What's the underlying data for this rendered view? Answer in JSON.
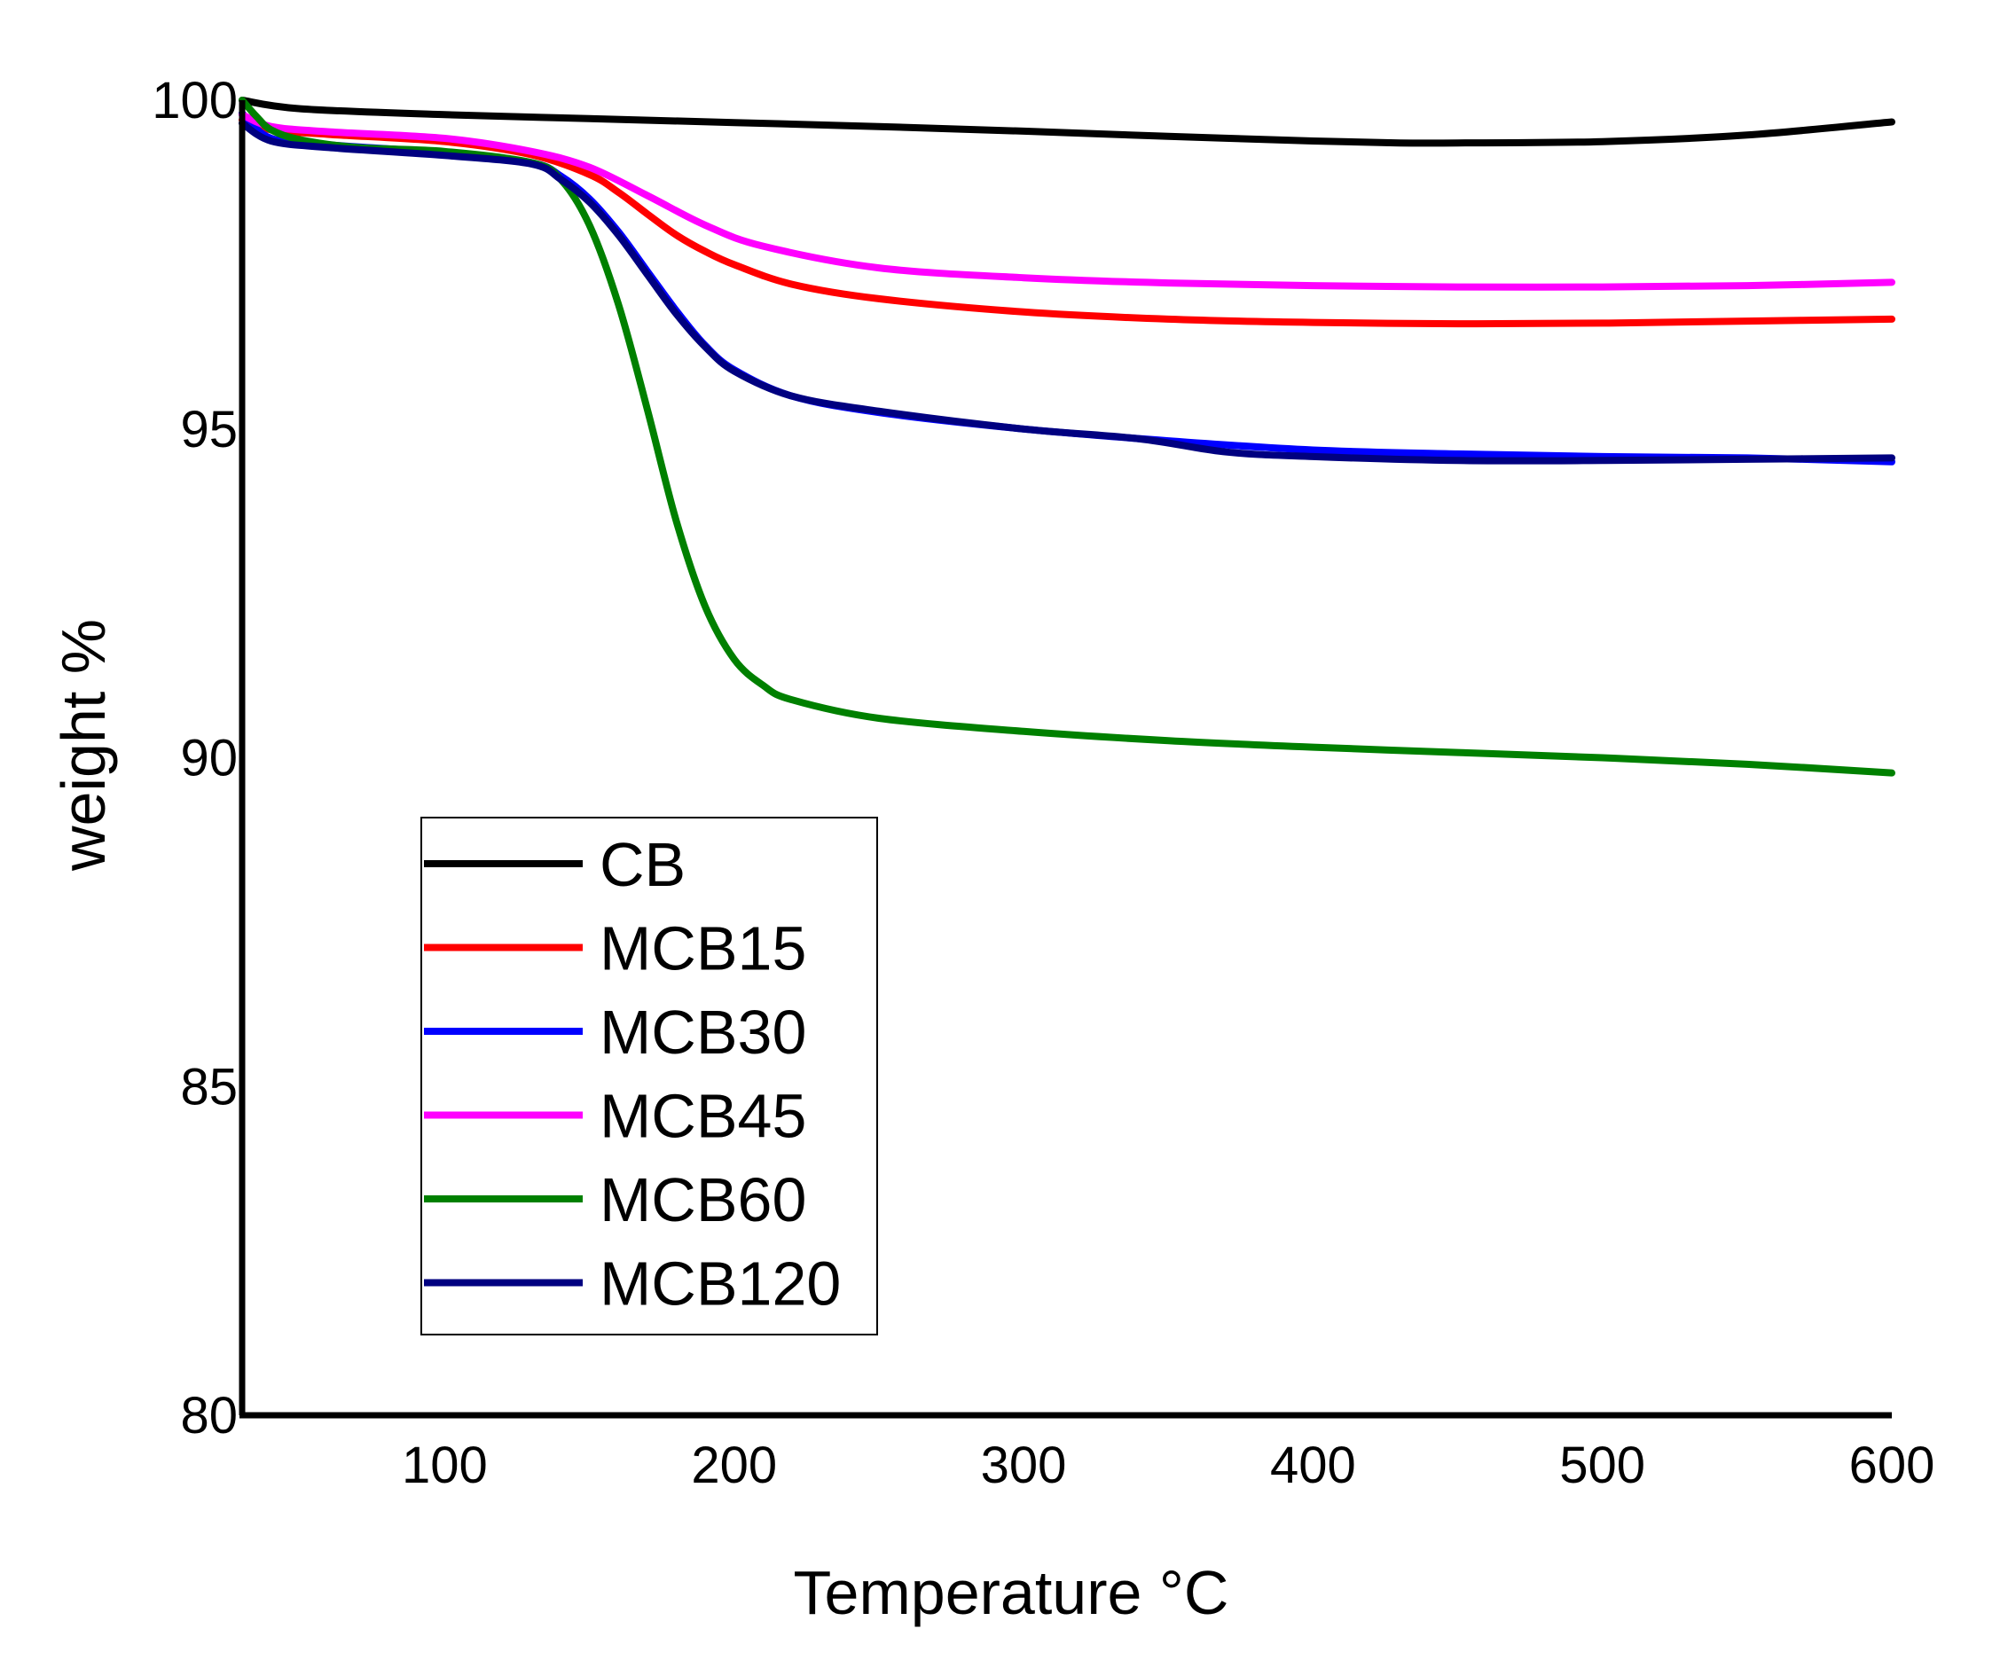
{
  "chart_data": {
    "type": "line",
    "title": "",
    "xlabel": "Temperature °C",
    "ylabel": "weight %",
    "xlim": [
      30,
      600
    ],
    "ylim": [
      80,
      100
    ],
    "xticks": [
      100,
      200,
      300,
      400,
      500,
      600
    ],
    "yticks": [
      80,
      85,
      90,
      95,
      100
    ],
    "xtick_labels": [
      "100",
      "200",
      "300",
      "400",
      "500",
      "600"
    ],
    "ytick_labels": [
      "80",
      "85",
      "90",
      "95",
      "100"
    ],
    "grid": false,
    "legend_position": "bottom-left",
    "series": [
      {
        "name": "CB",
        "color": "#000000",
        "x": [
          30,
          50,
          100,
          150,
          200,
          250,
          300,
          350,
          400,
          430,
          450,
          500,
          550,
          600
        ],
        "y": [
          100.0,
          99.87,
          99.78,
          99.72,
          99.66,
          99.6,
          99.53,
          99.45,
          99.38,
          99.35,
          99.35,
          99.37,
          99.47,
          99.67
        ]
      },
      {
        "name": "MCB15",
        "color": "#ff0000",
        "x": [
          30,
          40,
          60,
          100,
          130,
          150,
          160,
          170,
          180,
          190,
          200,
          220,
          250,
          300,
          350,
          400,
          450,
          500,
          550,
          600
        ],
        "y": [
          99.7,
          99.55,
          99.48,
          99.37,
          99.17,
          98.87,
          98.6,
          98.27,
          97.95,
          97.7,
          97.5,
          97.2,
          96.98,
          96.78,
          96.67,
          96.62,
          96.6,
          96.61,
          96.64,
          96.67
        ]
      },
      {
        "name": "MCB30",
        "color": "#0000ff",
        "x": [
          30,
          40,
          60,
          100,
          130,
          140,
          150,
          160,
          170,
          180,
          190,
          200,
          220,
          250,
          300,
          350,
          400,
          450,
          500,
          550,
          600
        ],
        "y": [
          99.8,
          99.42,
          99.32,
          99.2,
          99.05,
          98.85,
          98.5,
          98.0,
          97.4,
          96.8,
          96.27,
          95.9,
          95.5,
          95.25,
          95.0,
          94.82,
          94.68,
          94.62,
          94.58,
          94.56,
          94.5
        ]
      },
      {
        "name": "MCB45",
        "color": "#ff00ff",
        "x": [
          30,
          40,
          60,
          100,
          130,
          150,
          170,
          190,
          210,
          250,
          300,
          350,
          400,
          450,
          500,
          550,
          600
        ],
        "y": [
          99.78,
          99.6,
          99.52,
          99.42,
          99.22,
          98.98,
          98.55,
          98.1,
          97.78,
          97.45,
          97.3,
          97.22,
          97.18,
          97.16,
          97.16,
          97.18,
          97.23
        ]
      },
      {
        "name": "MCB60",
        "color": "#008000",
        "x": [
          30,
          35,
          40,
          50,
          70,
          100,
          130,
          140,
          150,
          160,
          170,
          180,
          190,
          200,
          210,
          220,
          250,
          300,
          350,
          400,
          450,
          500,
          550,
          600
        ],
        "y": [
          100.0,
          99.75,
          99.55,
          99.4,
          99.28,
          99.22,
          99.05,
          98.8,
          98.1,
          96.9,
          95.3,
          93.6,
          92.3,
          91.5,
          91.1,
          90.88,
          90.6,
          90.4,
          90.26,
          90.16,
          90.08,
          90.0,
          89.9,
          89.77
        ]
      },
      {
        "name": "MCB120",
        "color": "#000080",
        "x": [
          30,
          40,
          60,
          100,
          130,
          140,
          150,
          160,
          170,
          180,
          190,
          200,
          220,
          250,
          300,
          340,
          370,
          400,
          450,
          500,
          550,
          600
        ],
        "y": [
          99.65,
          99.38,
          99.28,
          99.16,
          99.03,
          98.8,
          98.45,
          97.95,
          97.35,
          96.75,
          96.25,
          95.88,
          95.5,
          95.27,
          95.0,
          94.85,
          94.65,
          94.58,
          94.52,
          94.52,
          94.54,
          94.56
        ]
      }
    ]
  }
}
